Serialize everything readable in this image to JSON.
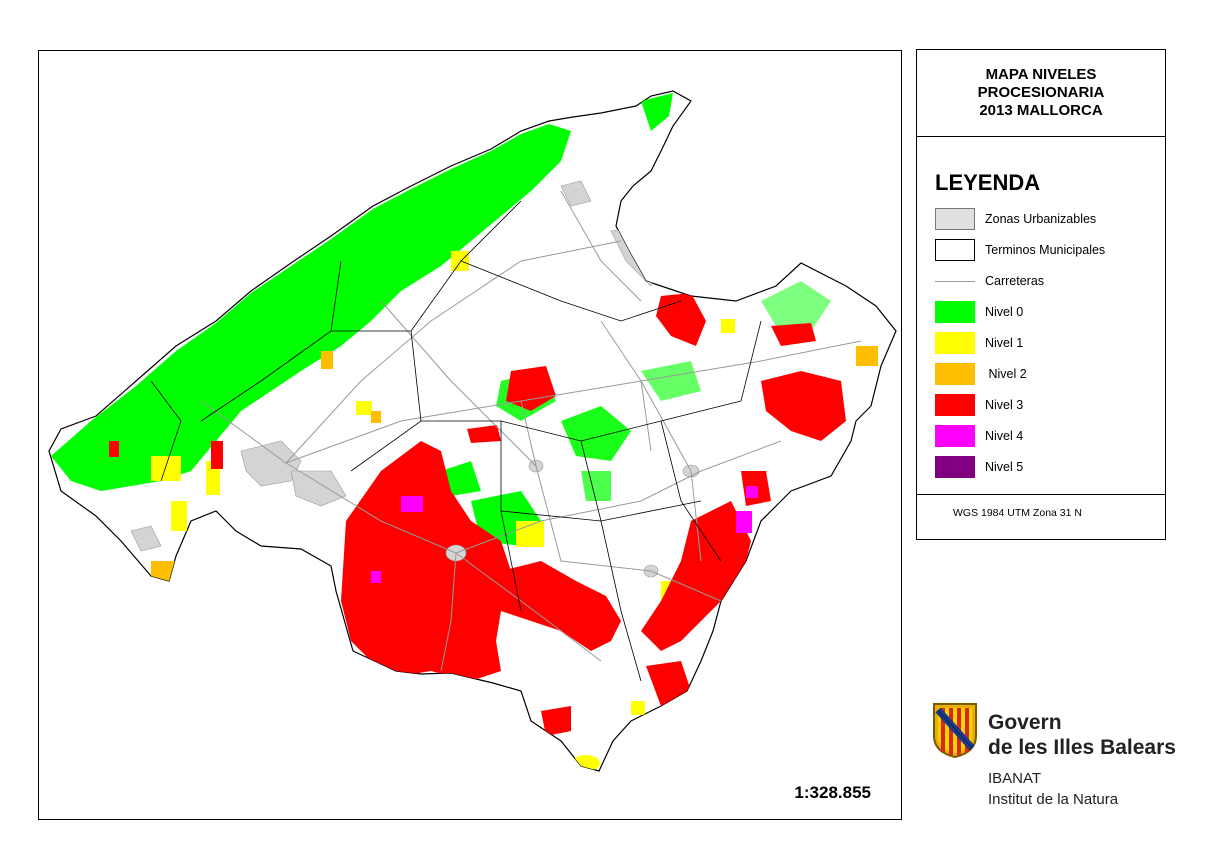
{
  "map": {
    "scale": "1:328.855"
  },
  "legend": {
    "title_lines": [
      "MAPA NIVELES",
      "PROCESIONARIA",
      "2013 MALLORCA"
    ],
    "heading": "LEYENDA",
    "items": [
      {
        "label": "Zonas Urbanizables",
        "type": "fill",
        "color": "#e0e0e0"
      },
      {
        "label": "Terminos Municipales",
        "type": "outline",
        "color": "#ffffff"
      },
      {
        "label": "Carreteras",
        "type": "line",
        "color": "#9a9a9a"
      },
      {
        "label": "Nivel 0",
        "type": "fill",
        "color": "#00ff00"
      },
      {
        "label": "Nivel 1",
        "type": "fill",
        "color": "#ffff00"
      },
      {
        "label": " Nivel 2",
        "type": "fill",
        "color": "#ffbf00"
      },
      {
        "label": "Nivel 3",
        "type": "fill",
        "color": "#ff0000"
      },
      {
        "label": "Nivel 4",
        "type": "fill",
        "color": "#ff00ff"
      },
      {
        "label": "Nivel 5",
        "type": "fill",
        "color": "#800080"
      }
    ],
    "projection": "WGS 1984 UTM Zona 31 N"
  },
  "logo": {
    "name_line1": "Govern",
    "name_line2": "de les Illes Balears",
    "sub_line1": "IBANAT",
    "sub_line2": "Institut de la Natura"
  }
}
